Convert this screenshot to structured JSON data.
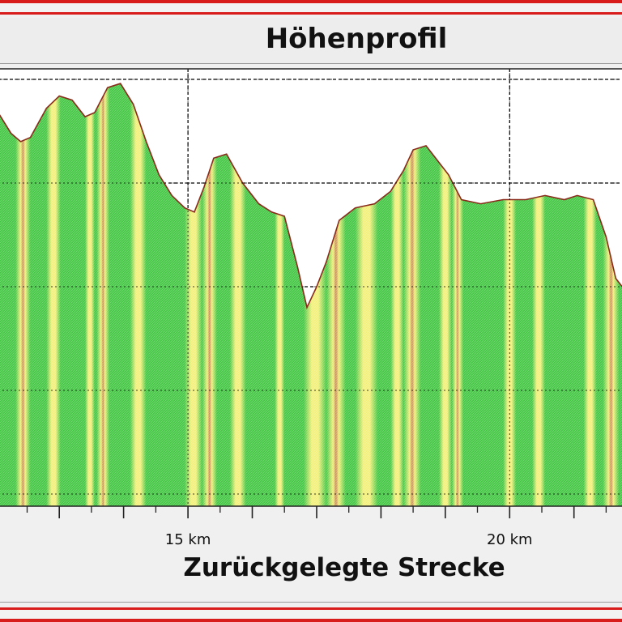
{
  "chart_data": {
    "type": "area",
    "title": "Höhenprofil",
    "xlabel": "Zurückgelegte Strecke",
    "ylabel": "",
    "x_unit": "km",
    "xlim": [
      11.6,
      22.25
    ],
    "ylim": [
      0,
      100
    ],
    "grid": true,
    "x_tick_labels": [
      {
        "value": 15,
        "label": "15 km"
      },
      {
        "value": 20,
        "label": "20 km"
      }
    ],
    "x_minor_ticks": [
      12,
      13,
      14,
      15,
      16,
      17,
      18,
      19,
      20,
      21,
      22
    ],
    "x_sub_ticks": [
      12.5,
      13.5,
      14.5,
      15.5,
      16.5,
      17.5,
      18.5,
      19.5,
      20.5,
      21.5
    ],
    "y_gridlines": [
      0,
      25,
      50,
      75,
      100
    ],
    "x_gridlines": [
      15,
      20
    ],
    "profile": {
      "x": [
        11.6,
        11.85,
        12.05,
        12.25,
        12.4,
        12.55,
        12.8,
        13.0,
        13.2,
        13.4,
        13.55,
        13.75,
        13.95,
        14.15,
        14.35,
        14.55,
        14.75,
        14.95,
        15.1,
        15.25,
        15.4,
        15.6,
        15.85,
        16.1,
        16.3,
        16.5,
        16.7,
        16.85,
        17.0,
        17.15,
        17.35,
        17.6,
        17.9,
        18.15,
        18.35,
        18.5,
        18.7,
        18.85,
        19.05,
        19.25,
        19.55,
        19.9,
        20.25,
        20.55,
        20.85,
        21.05,
        21.3,
        21.5,
        21.65,
        21.8,
        22.0,
        22.25
      ],
      "y": [
        90,
        93,
        92,
        87,
        85,
        86,
        93,
        96,
        95,
        91,
        92,
        98,
        99,
        94,
        85,
        77,
        72,
        69,
        68,
        74,
        81,
        82,
        75,
        70,
        68,
        67,
        55,
        45,
        50,
        56,
        66,
        69,
        70,
        73,
        78,
        83,
        84,
        81,
        77,
        71,
        70,
        71,
        71,
        72,
        71,
        72,
        71,
        62,
        52,
        49,
        49,
        46
      ]
    },
    "colors": {
      "fill": "#44c844",
      "outline": "#8a2a1a",
      "steep_band": "#c98d59",
      "mid_band": "#f2f07a"
    },
    "grade_bands": [
      {
        "x0": 11.6,
        "x1": 11.75,
        "level": "mid"
      },
      {
        "x0": 12.32,
        "x1": 12.55,
        "level": "steep"
      },
      {
        "x0": 12.8,
        "x1": 13.02,
        "level": "mid"
      },
      {
        "x0": 13.4,
        "x1": 13.55,
        "level": "mid"
      },
      {
        "x0": 13.58,
        "x1": 13.78,
        "level": "steep"
      },
      {
        "x0": 14.1,
        "x1": 14.35,
        "level": "mid"
      },
      {
        "x0": 14.95,
        "x1": 15.22,
        "level": "mid"
      },
      {
        "x0": 15.22,
        "x1": 15.45,
        "level": "steep"
      },
      {
        "x0": 15.65,
        "x1": 15.9,
        "level": "mid"
      },
      {
        "x0": 16.35,
        "x1": 16.5,
        "level": "mid"
      },
      {
        "x0": 16.8,
        "x1": 17.15,
        "level": "mid"
      },
      {
        "x0": 17.15,
        "x1": 17.45,
        "level": "steep"
      },
      {
        "x0": 17.6,
        "x1": 17.95,
        "level": "mid"
      },
      {
        "x0": 18.15,
        "x1": 18.35,
        "level": "mid"
      },
      {
        "x0": 18.35,
        "x1": 18.62,
        "level": "steep"
      },
      {
        "x0": 18.9,
        "x1": 19.1,
        "level": "mid"
      },
      {
        "x0": 19.1,
        "x1": 19.28,
        "level": "steep"
      },
      {
        "x0": 19.9,
        "x1": 20.1,
        "level": "mid"
      },
      {
        "x0": 20.35,
        "x1": 20.55,
        "level": "mid"
      },
      {
        "x0": 21.15,
        "x1": 21.35,
        "level": "mid"
      },
      {
        "x0": 21.45,
        "x1": 21.7,
        "level": "steep"
      },
      {
        "x0": 21.75,
        "x1": 22.0,
        "level": "mid"
      }
    ]
  }
}
